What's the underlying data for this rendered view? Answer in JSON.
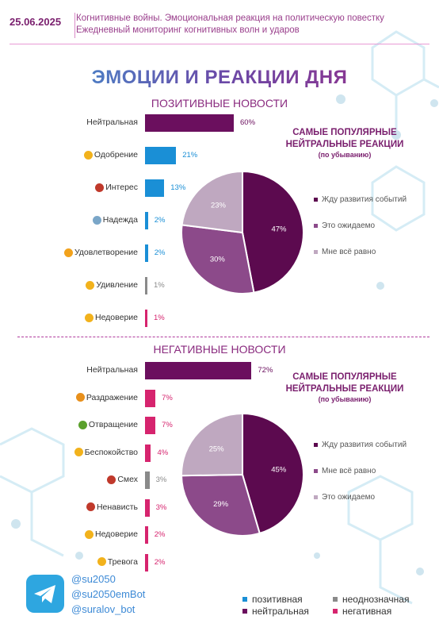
{
  "header": {
    "date": "25.06.2025",
    "line1": "Когнитивные войны. Эмоциональная реакция на политическую повестку",
    "line2": "Ежедневный мониторинг когнитивных волн и ударов"
  },
  "main_title": "ЭМОЦИИ И РЕАКЦИИ ДНЯ",
  "colors": {
    "positive": "#1a8fd6",
    "ambiguous": "#8a8a8a",
    "neutral": "#6b0f5e",
    "negative": "#d6246e",
    "pie_dark": "#5c0a4f",
    "pie_mid": "#8c4a8a",
    "pie_light": "#bfa8c0"
  },
  "chart_data": [
    {
      "type": "bar",
      "title": "ПОЗИТИВНЫЕ НОВОСТИ",
      "orientation": "horizontal",
      "categories": [
        "Нейтральная",
        "Одобрение",
        "Интерес",
        "Надежда",
        "Удовлетворение",
        "Удивление",
        "Недоверие"
      ],
      "values": [
        60,
        21,
        13,
        2,
        2,
        1,
        1
      ],
      "value_labels": [
        "60%",
        "21%",
        "13%",
        "2%",
        "2%",
        "1%",
        "1%"
      ],
      "category_types": [
        "neutral",
        "positive",
        "positive",
        "positive",
        "positive",
        "ambiguous",
        "negative"
      ],
      "icons": [
        "",
        "clap-icon",
        "heart-icon",
        "pray-icon",
        "smile-icon",
        "surprise-icon",
        "doubt-icon"
      ]
    },
    {
      "type": "pie",
      "title": "САМЫЕ ПОПУЛЯРНЫЕ НЕЙТРАЛЬНЫЕ РЕАКЦИИ",
      "subtitle": "(по убыванию)",
      "labels": [
        "Жду развития событий",
        "Это ожидаемо",
        "Мне всё равно"
      ],
      "values": [
        47,
        30,
        23
      ],
      "value_labels": [
        "47%",
        "30%",
        "23%"
      ],
      "legend": "right"
    },
    {
      "type": "bar",
      "title": "НЕГАТИВНЫЕ НОВОСТИ",
      "orientation": "horizontal",
      "categories": [
        "Нейтральная",
        "Раздражение",
        "Отвращение",
        "Беспокойство",
        "Смех",
        "Ненависть",
        "Недоверие",
        "Тревога"
      ],
      "values": [
        72,
        7,
        7,
        4,
        3,
        3,
        2,
        2
      ],
      "value_labels": [
        "72%",
        "7%",
        "7%",
        "4%",
        "3%",
        "3%",
        "2%",
        "2%"
      ],
      "category_types": [
        "neutral",
        "negative",
        "negative",
        "negative",
        "ambiguous",
        "negative",
        "negative",
        "negative"
      ],
      "icons": [
        "",
        "angry-icon",
        "disgust-icon",
        "worry-icon",
        "devil-icon",
        "rage-icon",
        "doubt-icon",
        "anxiety-icon"
      ]
    },
    {
      "type": "pie",
      "title": "САМЫЕ ПОПУЛЯРНЫЕ НЕЙТРАЛЬНЫЕ РЕАКЦИИ",
      "subtitle": "(по убыванию)",
      "labels": [
        "Жду развития событий",
        "Мне всё равно",
        "Это ожидаемо"
      ],
      "values": [
        45,
        29,
        25
      ],
      "value_labels": [
        "45%",
        "29%",
        "25%"
      ],
      "legend": "right"
    }
  ],
  "footer": {
    "handles": [
      "@su2050",
      "@su2050emBot",
      "@suralov_bot"
    ],
    "legend": [
      {
        "label": "позитивная",
        "type": "positive"
      },
      {
        "label": "неоднозначная",
        "type": "ambiguous"
      },
      {
        "label": "нейтральная",
        "type": "neutral"
      },
      {
        "label": "негативная",
        "type": "negative"
      }
    ]
  }
}
